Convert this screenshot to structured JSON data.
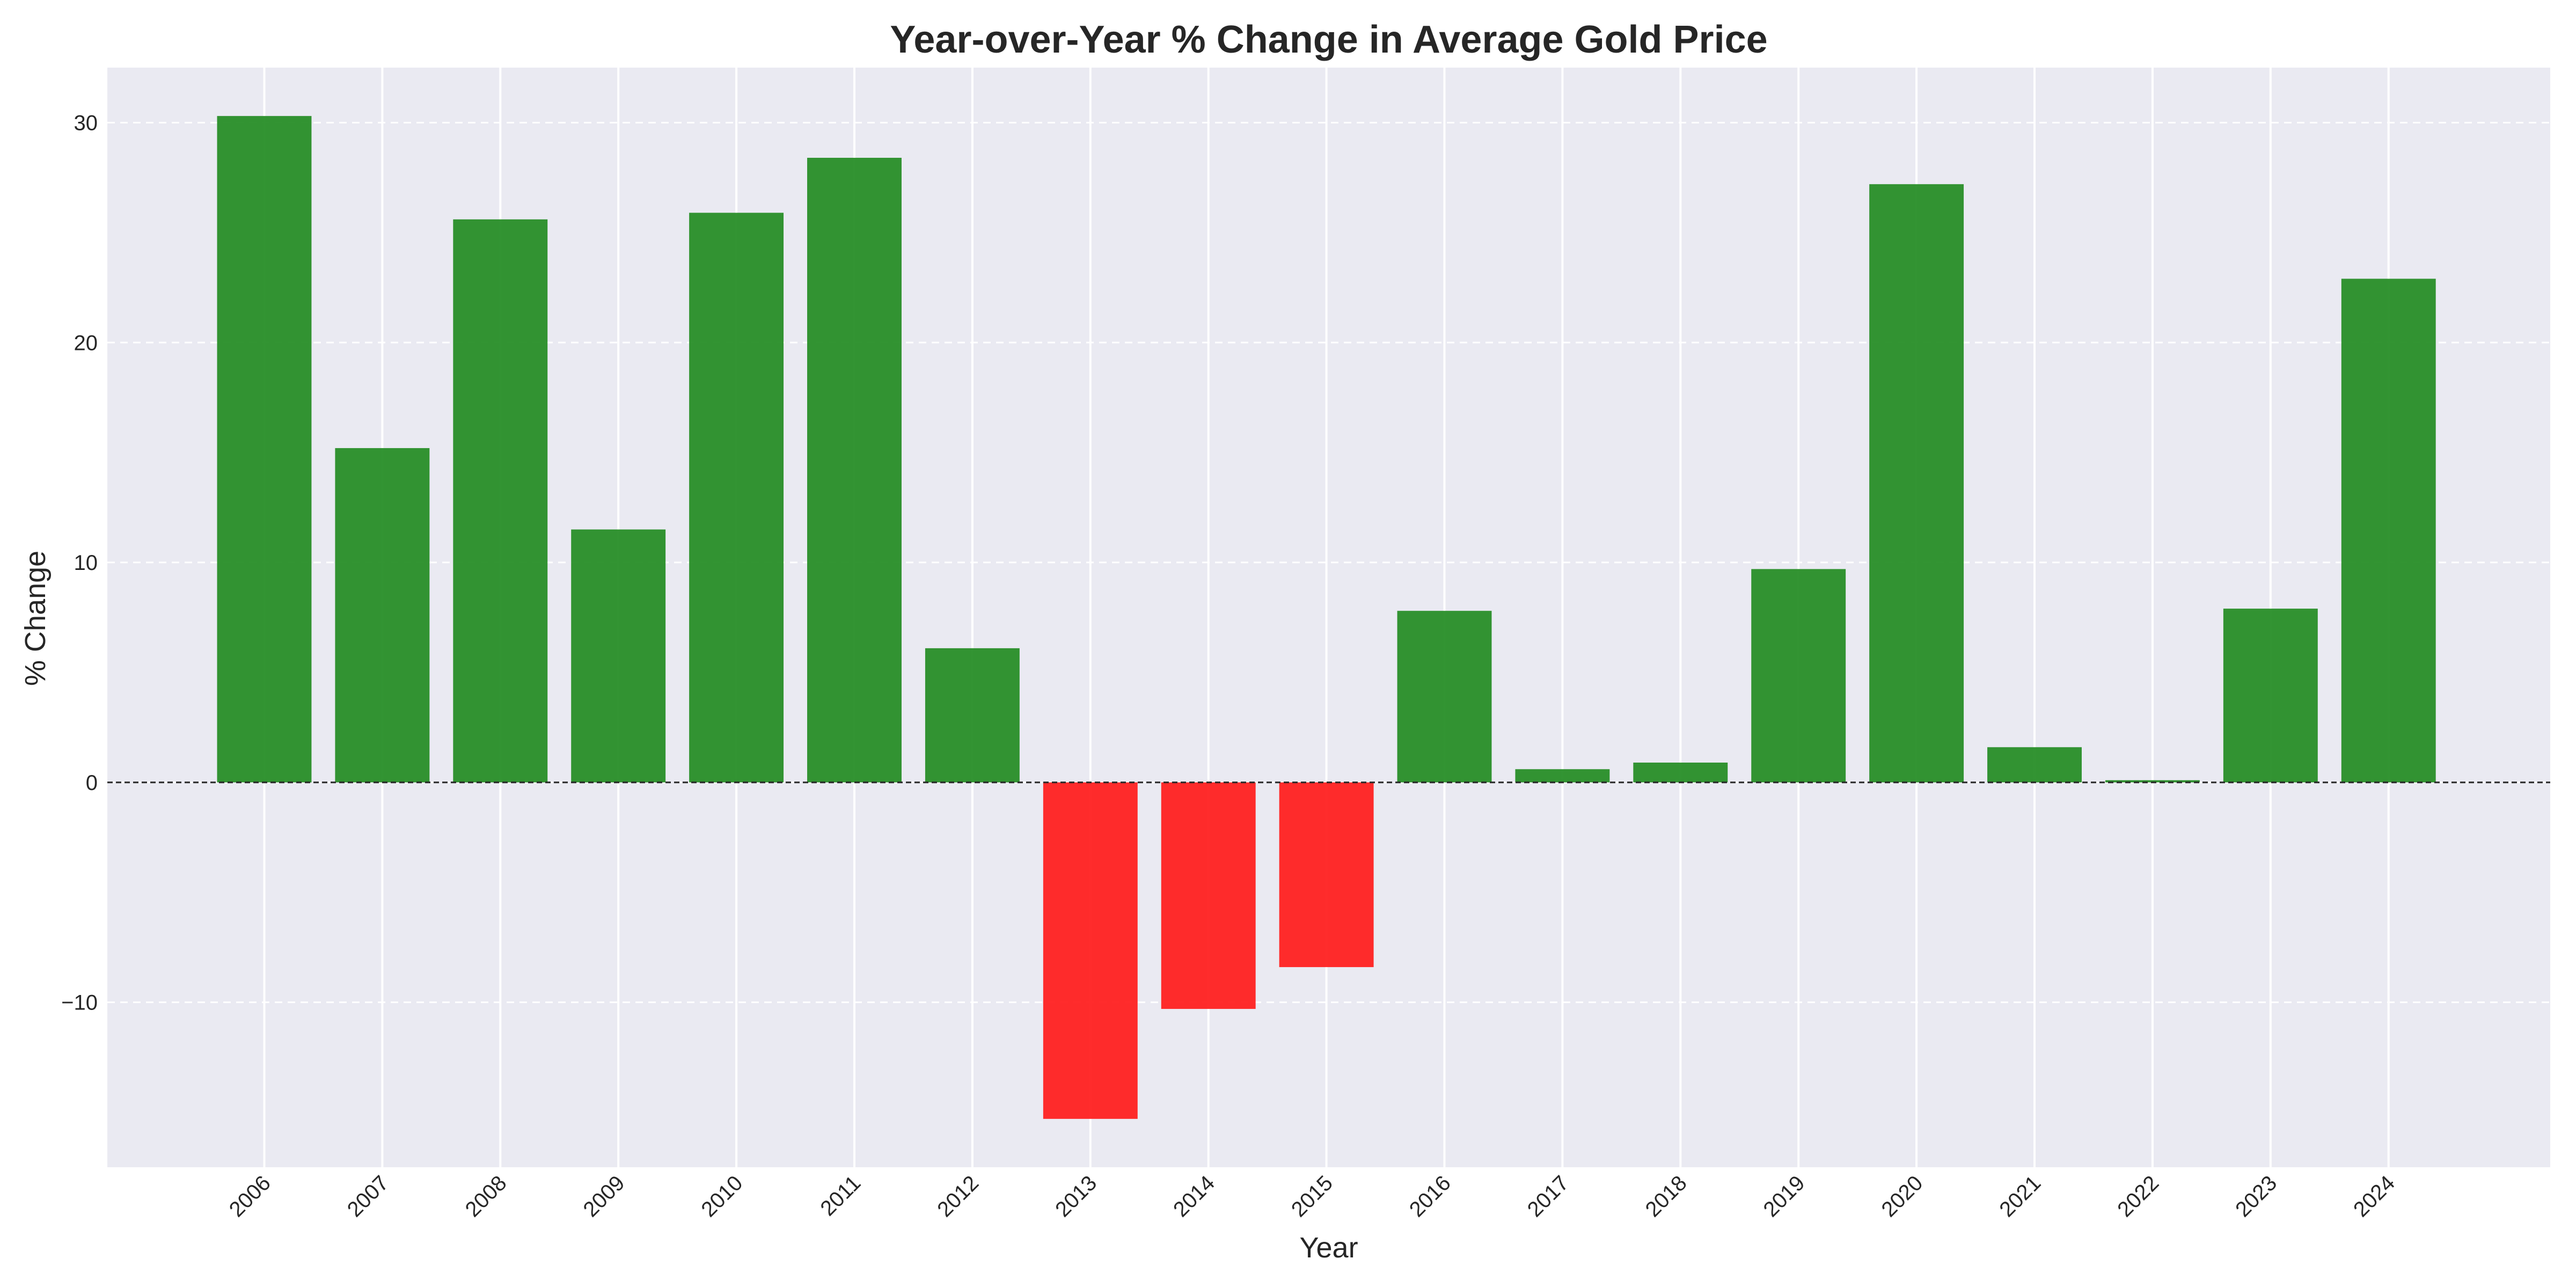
{
  "chart_data": {
    "type": "bar",
    "title": "Year-over-Year % Change in Average Gold Price",
    "xlabel": "Year",
    "ylabel": "% Change",
    "categories": [
      "2006",
      "2007",
      "2008",
      "2009",
      "2010",
      "2011",
      "2012",
      "2013",
      "2014",
      "2015",
      "2016",
      "2017",
      "2018",
      "2019",
      "2020",
      "2021",
      "2022",
      "2023",
      "2024"
    ],
    "values": [
      30.3,
      15.2,
      25.6,
      11.5,
      25.9,
      28.4,
      6.1,
      -15.3,
      -10.3,
      -8.4,
      7.8,
      0.6,
      0.9,
      9.7,
      27.2,
      1.6,
      0.1,
      7.9,
      22.9
    ],
    "ylim": [
      -17.5,
      32.5
    ],
    "yticks": [
      -10,
      0,
      10,
      20,
      30
    ],
    "ytick_labels": [
      "−10",
      "0",
      "10",
      "20",
      "30"
    ],
    "grid": true,
    "zero_line": true,
    "colors": {
      "positive": "#228B22",
      "negative": "#FF1A1A",
      "plot_background": "#EAEAF2",
      "grid": "#FFFFFF",
      "zero_line": "#262626"
    }
  }
}
